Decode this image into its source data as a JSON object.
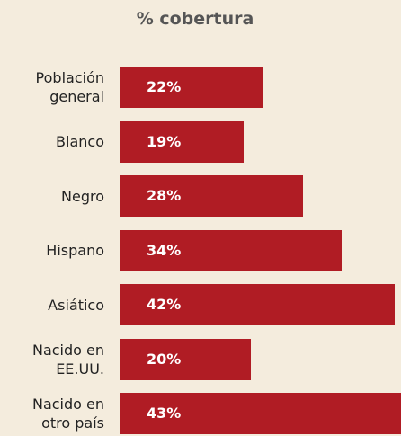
{
  "chart_data": {
    "type": "bar",
    "orientation": "horizontal",
    "title": "% cobertura",
    "categories": [
      "Población general",
      "Blanco",
      "Negro",
      "Hispano",
      "Asiático",
      "Nacido en EE.UU.",
      "Nacido en otro país"
    ],
    "values": [
      22,
      19,
      28,
      34,
      42,
      20,
      43
    ],
    "value_labels": [
      "22%",
      "19%",
      "28%",
      "34%",
      "42%",
      "20%",
      "43%"
    ],
    "color": "#b01c24"
  }
}
